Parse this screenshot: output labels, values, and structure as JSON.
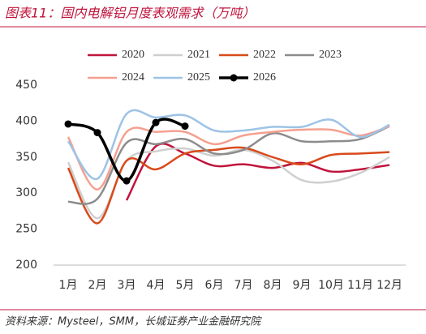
{
  "chart_data": {
    "type": "line",
    "title": "图表11：国内电解铝月度表观需求（万吨）",
    "source": "资料来源：Mysteel，SMM，长城证券产业金融研究院",
    "categories": [
      "1月",
      "2月",
      "3月",
      "4月",
      "5月",
      "6月",
      "7月",
      "8月",
      "9月",
      "10月",
      "11月",
      "12月"
    ],
    "ylim": [
      200,
      450
    ],
    "yticks": [
      200,
      250,
      300,
      350,
      400,
      450
    ],
    "series": [
      {
        "name": "2020",
        "color": "#c0143c",
        "values": [
          null,
          null,
          290,
          365,
          355,
          338,
          340,
          335,
          342,
          330,
          333,
          339
        ]
      },
      {
        "name": "2021",
        "color": "#cfcfcf",
        "values": [
          343,
          265,
          345,
          358,
          362,
          352,
          360,
          345,
          318,
          316,
          328,
          350
        ]
      },
      {
        "name": "2022",
        "color": "#d84a1b",
        "values": [
          335,
          258,
          345,
          333,
          355,
          360,
          363,
          350,
          340,
          353,
          355,
          357
        ]
      },
      {
        "name": "2023",
        "color": "#8c8c8c",
        "values": [
          288,
          292,
          370,
          368,
          375,
          355,
          360,
          383,
          372,
          372,
          375,
          393
        ]
      },
      {
        "name": "2024",
        "color": "#f4a090",
        "values": [
          378,
          305,
          385,
          385,
          385,
          368,
          380,
          385,
          388,
          388,
          380,
          393
        ]
      },
      {
        "name": "2025",
        "color": "#9dc3e6",
        "values": [
          372,
          320,
          410,
          405,
          408,
          387,
          387,
          392,
          392,
          402,
          378,
          395
        ]
      },
      {
        "name": "2026",
        "color": "#000000",
        "markers": true,
        "values": [
          396,
          384,
          317,
          398,
          393,
          null,
          null,
          null,
          null,
          null,
          null,
          null
        ]
      }
    ]
  }
}
